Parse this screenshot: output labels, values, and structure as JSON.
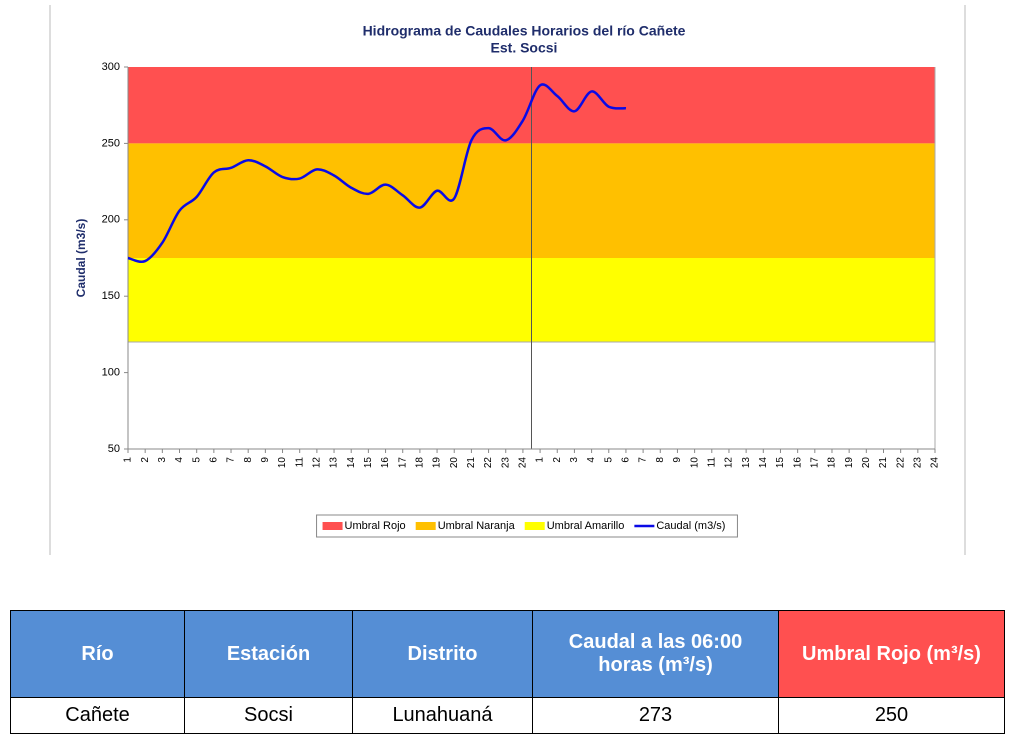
{
  "chart_data": {
    "type": "line",
    "title": "Hidrograma de Caudales Horarios del río Cañete",
    "subtitle": "Est. Socsi",
    "y_label": "Caudal  (m3/s)",
    "categories": [
      "1",
      "2",
      "3",
      "4",
      "5",
      "6",
      "7",
      "8",
      "9",
      "10",
      "11",
      "12",
      "13",
      "14",
      "15",
      "16",
      "17",
      "18",
      "19",
      "20",
      "21",
      "22",
      "23",
      "24",
      "1",
      "2",
      "3",
      "4",
      "5",
      "6",
      "7",
      "8",
      "9",
      "10",
      "11",
      "12",
      "13",
      "14",
      "15",
      "16",
      "17",
      "18",
      "19",
      "20",
      "21",
      "22",
      "23",
      "24"
    ],
    "thresholds": [
      {
        "name": "Umbral Rojo",
        "color": "#ff5050",
        "lower": 250,
        "upper": 300
      },
      {
        "name": "Umbral Naranja",
        "color": "#ffc000",
        "lower": 175,
        "upper": 250
      },
      {
        "name": "Umbral Amarillo",
        "color": "#ffff00",
        "lower": 120,
        "upper": 175
      }
    ],
    "series": [
      {
        "name": "Caudal (m3/s)",
        "color": "#0a0ae6",
        "values": [
          175,
          173,
          185,
          206,
          215,
          231,
          234,
          239,
          235,
          228,
          227,
          233,
          229,
          221,
          217,
          223,
          216,
          208,
          219,
          214,
          252,
          260,
          252,
          265,
          288,
          281,
          271,
          284,
          274,
          273,
          null,
          null,
          null,
          null,
          null,
          null,
          null,
          null,
          null,
          null,
          null,
          null,
          null,
          null,
          null,
          null,
          null,
          null
        ]
      }
    ],
    "ylim": [
      50,
      300
    ],
    "yticks": [
      50,
      100,
      150,
      200,
      250,
      300
    ],
    "legend": "bottom"
  },
  "table": {
    "headers": [
      "Río",
      "Estación",
      "Distrito",
      "Caudal a las 06:00 horas (m³/s)",
      "Umbral Rojo (m³/s)"
    ],
    "rows": [
      [
        "Cañete",
        "Socsi",
        "Lunahuaná",
        "273",
        "250"
      ]
    ]
  }
}
